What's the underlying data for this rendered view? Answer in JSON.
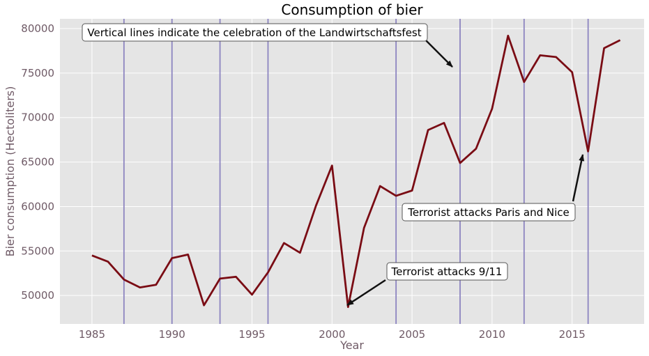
{
  "chart_data": {
    "type": "line",
    "title": "Consumption of bier",
    "xlabel": "Year",
    "ylabel": "Bier consumption (Hectoliters)",
    "xlim": [
      1984.3,
      1919.5
    ],
    "ylim": [
      46800,
      81100
    ],
    "xticks": [
      1985,
      1990,
      1995,
      2000,
      2005,
      2010,
      2015
    ],
    "yticks": [
      50000,
      55000,
      60000,
      65000,
      70000,
      75000,
      80000
    ],
    "grid": true,
    "series": [
      {
        "color": "#7a0c14",
        "x": [
          1985,
          1986,
          1987,
          1988,
          1989,
          1990,
          1991,
          1992,
          1993,
          1994,
          1995,
          1996,
          1997,
          1998,
          1999,
          2000,
          2001,
          2002,
          2003,
          2004,
          2005,
          2006,
          2007,
          2008,
          2009,
          2010,
          2011,
          2012,
          2013,
          2014,
          2015,
          2016,
          2017,
          2018
        ],
        "values": [
          54500,
          53800,
          51800,
          50900,
          51200,
          54200,
          54600,
          48900,
          51900,
          52100,
          50100,
          52600,
          55900,
          54800,
          60100,
          64600,
          48700,
          57600,
          62300,
          61200,
          61800,
          68600,
          69400,
          64900,
          66500,
          71000,
          79200,
          74000,
          77000,
          76800,
          75100,
          66200,
          77800,
          78700
        ]
      }
    ],
    "vertical_lines": {
      "color": "#8c84c0",
      "x": [
        1987,
        1990,
        1993,
        1996,
        2004,
        2008,
        2012,
        2016
      ]
    },
    "annotations": [
      {
        "text": "Vertical lines indicate the celebration of the Landwirtschaftsfest",
        "point": [
          2008,
          75300
        ]
      },
      {
        "text": "Terrorist attacks Paris and Nice",
        "point": [
          2016,
          66000
        ]
      },
      {
        "text": "Terrorist attacks 9/11",
        "point": [
          2001,
          48800
        ]
      }
    ]
  }
}
